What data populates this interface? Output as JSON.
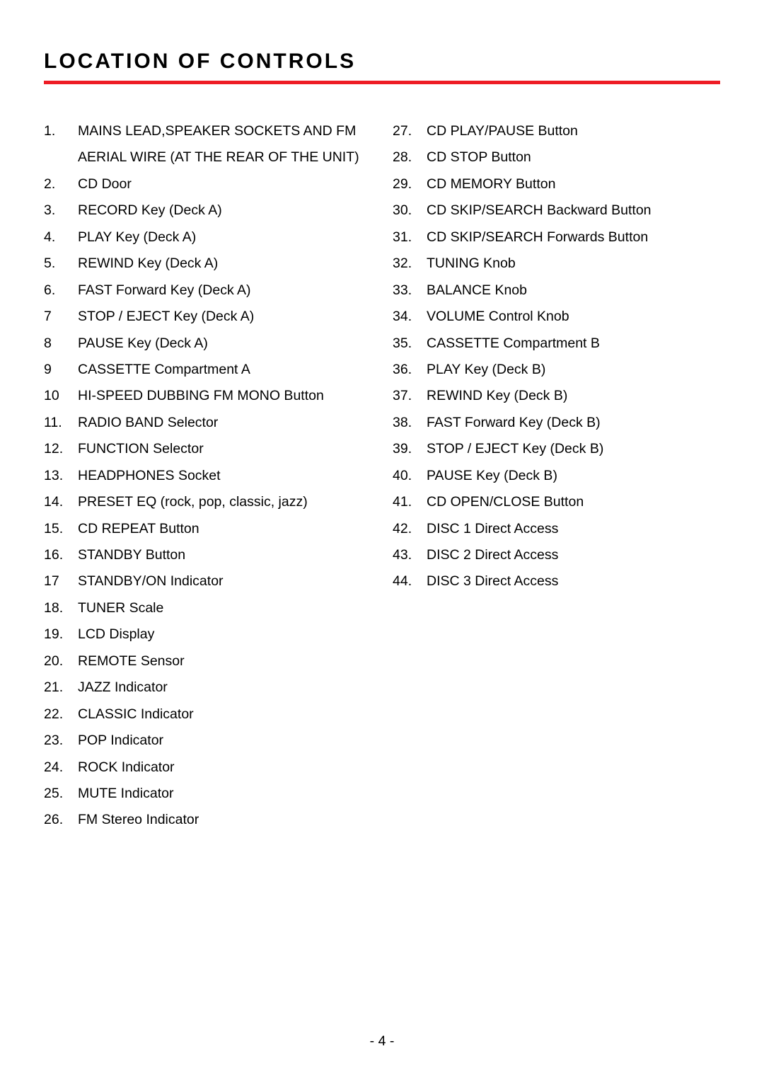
{
  "title": "LOCATION OF CONTROLS",
  "pageNumber": "- 4 -",
  "leftColumn": [
    {
      "num": "1.",
      "text": "MAINS LEAD,SPEAKER SOCKETS AND FM AERIAL WIRE (AT THE REAR OF THE UNIT)"
    },
    {
      "num": "2.",
      "text": "CD Door"
    },
    {
      "num": "3.",
      "text": "RECORD Key (Deck A)"
    },
    {
      "num": "4.",
      "text": "PLAY Key (Deck A)"
    },
    {
      "num": "5.",
      "text": "REWIND Key (Deck A)"
    },
    {
      "num": "6.",
      "text": "FAST Forward Key (Deck A)"
    },
    {
      "num": "7",
      "text": "STOP / EJECT Key (Deck A)"
    },
    {
      "num": "8",
      "text": "PAUSE Key (Deck A)"
    },
    {
      "num": "9",
      "text": "CASSETTE Compartment A"
    },
    {
      "num": "10",
      "text": "HI-SPEED DUBBING FM MONO Button"
    },
    {
      "num": "11.",
      "text": "RADIO BAND Selector"
    },
    {
      "num": "12.",
      "text": "FUNCTION Selector"
    },
    {
      "num": "13.",
      "text": "HEADPHONES Socket"
    },
    {
      "num": "14.",
      "text": "PRESET EQ (rock, pop, classic, jazz)"
    },
    {
      "num": "15.",
      "text": "CD REPEAT Button"
    },
    {
      "num": "16.",
      "text": "STANDBY Button"
    },
    {
      "num": "17",
      "text": "STANDBY/ON Indicator"
    },
    {
      "num": "18.",
      "text": "TUNER Scale"
    },
    {
      "num": "19.",
      "text": " LCD Display"
    },
    {
      "num": "20.",
      "text": "REMOTE Sensor"
    },
    {
      "num": "21.",
      "text": "JAZZ Indicator"
    },
    {
      "num": "22.",
      "text": "CLASSIC Indicator"
    },
    {
      "num": "23.",
      "text": "POP Indicator"
    },
    {
      "num": "24.",
      "text": "ROCK Indicator"
    },
    {
      "num": "25.",
      "text": "MUTE Indicator"
    },
    {
      "num": "26.",
      "text": "FM Stereo Indicator"
    }
  ],
  "rightColumn": [
    {
      "num": "27.",
      "text": "CD PLAY/PAUSE Button"
    },
    {
      "num": "28.",
      "text": "CD STOP Button"
    },
    {
      "num": "29.",
      "text": "CD MEMORY Button"
    },
    {
      "num": "30.",
      "text": "CD SKIP/SEARCH Backward Button"
    },
    {
      "num": "31.",
      "text": "CD SKIP/SEARCH Forwards Button"
    },
    {
      "num": "32.",
      "text": "TUNING Knob"
    },
    {
      "num": "33.",
      "text": "BALANCE Knob"
    },
    {
      "num": "34.",
      "text": "VOLUME Control Knob"
    },
    {
      "num": "35.",
      "text": "CASSETTE Compartment B"
    },
    {
      "num": "36.",
      "text": "PLAY Key (Deck B)"
    },
    {
      "num": "37.",
      "text": "REWIND Key (Deck B)"
    },
    {
      "num": "38.",
      "text": "FAST Forward Key (Deck B)"
    },
    {
      "num": "39.",
      "text": "STOP / EJECT Key (Deck B)"
    },
    {
      "num": "40.",
      "text": "PAUSE Key (Deck B)"
    },
    {
      "num": "41.",
      "text": "CD OPEN/CLOSE Button"
    },
    {
      "num": "42.",
      "text": "DISC 1 Direct Access"
    },
    {
      "num": "43.",
      "text": "DISC 2 Direct Access"
    },
    {
      "num": "44.",
      "text": "DISC 3 Direct Access"
    }
  ],
  "styling": {
    "bodyWidth": 1080,
    "bodyHeight": 1533,
    "backgroundColor": "#ffffff",
    "textColor": "#000000",
    "ruleColor": "#ee1c25",
    "titleFontSize": 30,
    "bodyFontSize": 19.5,
    "lineHeight": 1.92,
    "titleLetterSpacing": 3,
    "ruleHeight": 5
  }
}
